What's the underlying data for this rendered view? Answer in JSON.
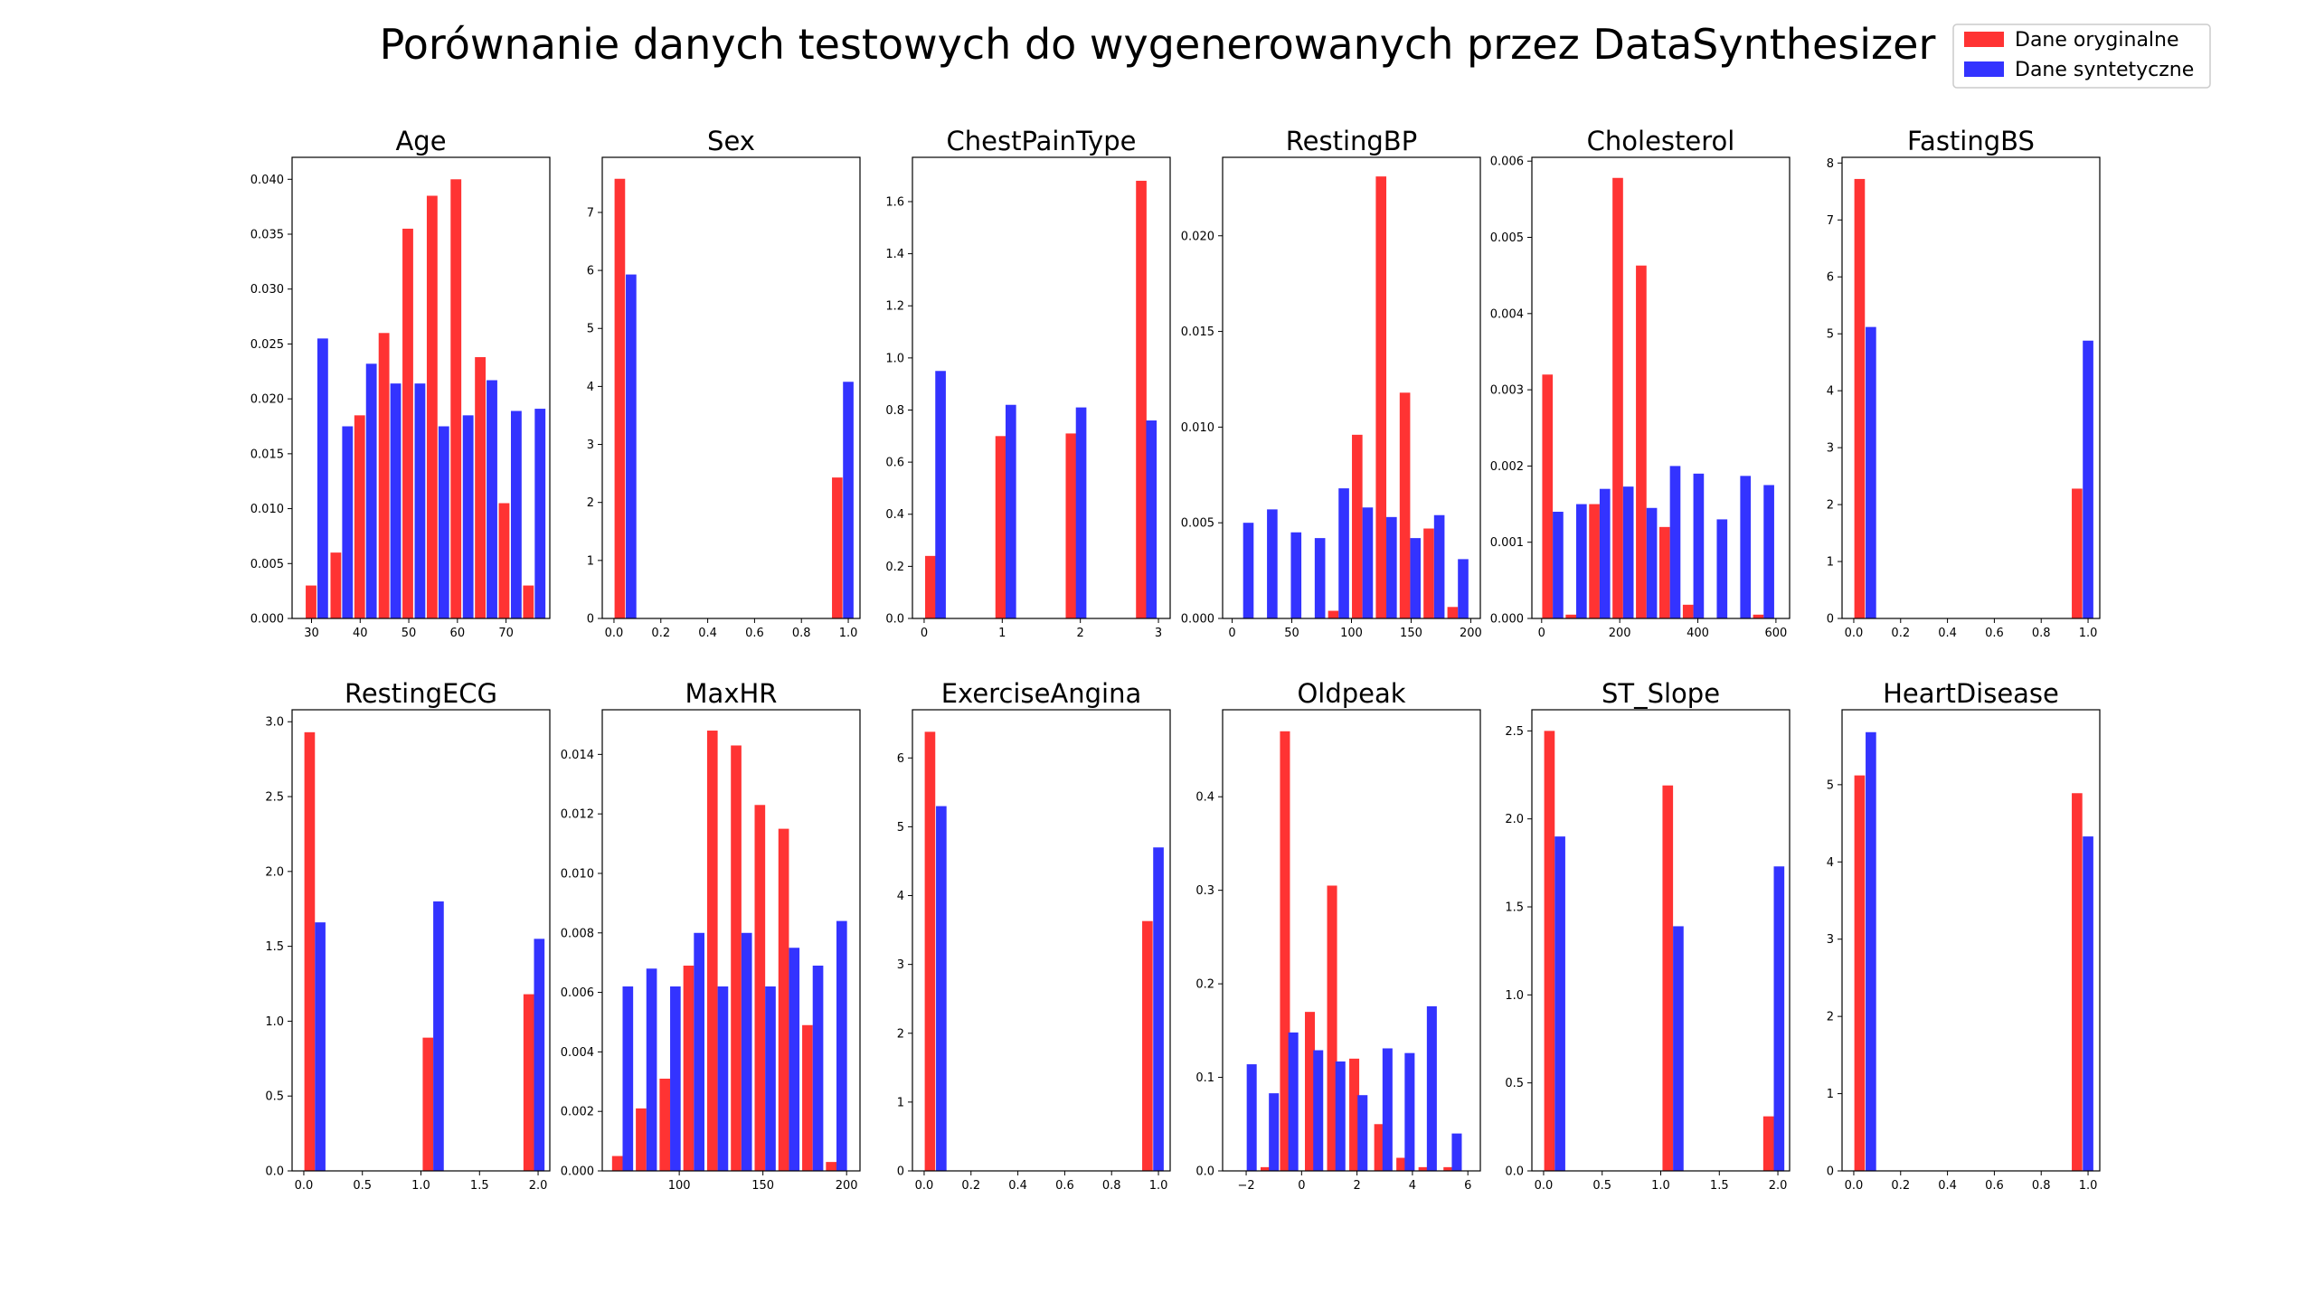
{
  "title": "Porównanie danych testowych do wygenerowanych przez DataSynthesizer",
  "legend": {
    "placement": "top-right",
    "items": [
      {
        "label": "Dane oryginalne",
        "color": "#ff3333"
      },
      {
        "label": "Dane syntetyczne",
        "color": "#3333ff"
      }
    ]
  },
  "chart_data": [
    {
      "type": "bar",
      "title": "Age",
      "xlim": [
        26,
        79
      ],
      "ylim": [
        0,
        0.042
      ],
      "xticks": [
        30,
        40,
        50,
        60,
        70
      ],
      "xtick_labels": [
        "30",
        "40",
        "50",
        "60",
        "70"
      ],
      "yticks": [
        0,
        0.005,
        0.01,
        0.015,
        0.02,
        0.025,
        0.03,
        0.035,
        0.04
      ],
      "ytick_labels": [
        "0.000",
        "0.005",
        "0.010",
        "0.015",
        "0.020",
        "0.025",
        "0.030",
        "0.035",
        "0.040"
      ],
      "bar_width": 2.2,
      "series": [
        {
          "name": "Dane oryginalne",
          "x": [
            29.9,
            35.0,
            39.9,
            44.9,
            49.8,
            54.8,
            59.7,
            64.7,
            69.6,
            74.6
          ],
          "values": [
            0.003,
            0.006,
            0.0185,
            0.026,
            0.0355,
            0.0385,
            0.04,
            0.0238,
            0.0105,
            0.003
          ]
        },
        {
          "name": "Dane syntetyczne",
          "x": [
            32.3,
            37.4,
            42.3,
            47.3,
            52.3,
            57.2,
            62.2,
            67.1,
            72.1,
            77.0
          ],
          "values": [
            0.0255,
            0.0175,
            0.0232,
            0.0214,
            0.0214,
            0.0175,
            0.0185,
            0.0217,
            0.0189,
            0.0191
          ]
        }
      ]
    },
    {
      "type": "bar",
      "title": "Sex",
      "xlim": [
        -0.05,
        1.05
      ],
      "ylim": [
        0,
        7.95
      ],
      "xticks": [
        0,
        0.2,
        0.4,
        0.6,
        0.8,
        1.0
      ],
      "xtick_labels": [
        "0.0",
        "0.2",
        "0.4",
        "0.6",
        "0.8",
        "1.0"
      ],
      "yticks": [
        0,
        1,
        2,
        3,
        4,
        5,
        6,
        7
      ],
      "ytick_labels": [
        "0",
        "1",
        "2",
        "3",
        "4",
        "5",
        "6",
        "7"
      ],
      "bar_width": 0.045,
      "series": [
        {
          "name": "Dane oryginalne",
          "x": [
            0.025,
            0.953
          ],
          "values": [
            7.58,
            2.43
          ]
        },
        {
          "name": "Dane syntetyczne",
          "x": [
            0.073,
            1.0
          ],
          "values": [
            5.93,
            4.08
          ]
        }
      ]
    },
    {
      "type": "bar",
      "title": "ChestPainType",
      "xlim": [
        -0.15,
        3.15
      ],
      "ylim": [
        0,
        1.77
      ],
      "xticks": [
        0,
        1,
        2,
        3
      ],
      "xtick_labels": [
        "0",
        "1",
        "2",
        "3"
      ],
      "yticks": [
        0,
        0.2,
        0.4,
        0.6,
        0.8,
        1.0,
        1.2,
        1.4,
        1.6
      ],
      "ytick_labels": [
        "0.0",
        "0.2",
        "0.4",
        "0.6",
        "0.8",
        "1.0",
        "1.2",
        "1.4",
        "1.6"
      ],
      "bar_width": 0.135,
      "series": [
        {
          "name": "Dane oryginalne",
          "x": [
            0.08,
            0.98,
            1.88,
            2.78
          ],
          "values": [
            0.24,
            0.7,
            0.71,
            1.68
          ]
        },
        {
          "name": "Dane syntetyczne",
          "x": [
            0.21,
            1.11,
            2.01,
            2.91
          ],
          "values": [
            0.95,
            0.82,
            0.81,
            0.76
          ]
        }
      ]
    },
    {
      "type": "bar",
      "title": "RestingBP",
      "xlim": [
        -8,
        208
      ],
      "ylim": [
        0,
        0.0241
      ],
      "xticks": [
        0,
        50,
        100,
        150,
        200
      ],
      "xtick_labels": [
        "0",
        "50",
        "100",
        "150",
        "200"
      ],
      "yticks": [
        0,
        0.005,
        0.01,
        0.015,
        0.02
      ],
      "ytick_labels": [
        "0.000",
        "0.005",
        "0.010",
        "0.015",
        "0.020"
      ],
      "bar_width": 8.8,
      "series": [
        {
          "name": "Dane oryginalne",
          "x": [
            4.8,
            24.8,
            44.8,
            64.8,
            84.8,
            104.8,
            124.8,
            144.8,
            164.8,
            184.8
          ],
          "values": [
            0,
            0,
            0,
            0,
            0.0004,
            0.0096,
            0.0231,
            0.0118,
            0.0047,
            0.0006
          ]
        },
        {
          "name": "Dane syntetyczne",
          "x": [
            13.6,
            33.6,
            53.6,
            73.6,
            93.6,
            113.6,
            133.6,
            153.6,
            173.6,
            193.6
          ],
          "values": [
            0.005,
            0.0057,
            0.0045,
            0.0042,
            0.0068,
            0.0058,
            0.0053,
            0.0042,
            0.0054,
            0.0031
          ]
        }
      ]
    },
    {
      "type": "bar",
      "title": "Cholesterol",
      "xlim": [
        -25,
        635
      ],
      "ylim": [
        0,
        0.00605
      ],
      "xticks": [
        0,
        200,
        400,
        600
      ],
      "xtick_labels": [
        "0",
        "200",
        "400",
        "600"
      ],
      "yticks": [
        0,
        0.001,
        0.002,
        0.003,
        0.004,
        0.005,
        0.006
      ],
      "ytick_labels": [
        "0.000",
        "0.001",
        "0.002",
        "0.003",
        "0.004",
        "0.005",
        "0.006"
      ],
      "bar_width": 27,
      "series": [
        {
          "name": "Dane oryginalne",
          "x": [
            15,
            75,
            135,
            195,
            255,
            315,
            375,
            435,
            495,
            555
          ],
          "values": [
            0.0032,
            5e-05,
            0.0015,
            0.00578,
            0.00463,
            0.0012,
            0.00018,
            0,
            0,
            5e-05
          ]
        },
        {
          "name": "Dane syntetyczne",
          "x": [
            42,
            102,
            162,
            222,
            282,
            342,
            402,
            462,
            522,
            582
          ],
          "values": [
            0.0014,
            0.0015,
            0.0017,
            0.00173,
            0.00145,
            0.002,
            0.0019,
            0.0013,
            0.00187,
            0.00175
          ]
        }
      ]
    },
    {
      "type": "bar",
      "title": "FastingBS",
      "xlim": [
        -0.05,
        1.05
      ],
      "ylim": [
        0,
        8.1
      ],
      "xticks": [
        0,
        0.2,
        0.4,
        0.6,
        0.8,
        1.0
      ],
      "xtick_labels": [
        "0.0",
        "0.2",
        "0.4",
        "0.6",
        "0.8",
        "1.0"
      ],
      "yticks": [
        0,
        1,
        2,
        3,
        4,
        5,
        6,
        7,
        8
      ],
      "ytick_labels": [
        "0",
        "1",
        "2",
        "3",
        "4",
        "5",
        "6",
        "7",
        "8"
      ],
      "bar_width": 0.045,
      "series": [
        {
          "name": "Dane oryginalne",
          "x": [
            0.025,
            0.953
          ],
          "values": [
            7.72,
            2.28
          ]
        },
        {
          "name": "Dane syntetyczne",
          "x": [
            0.073,
            1.0
          ],
          "values": [
            5.12,
            4.88
          ]
        }
      ]
    },
    {
      "type": "bar",
      "title": "RestingECG",
      "xlim": [
        -0.1,
        2.1
      ],
      "ylim": [
        0,
        3.08
      ],
      "xticks": [
        0,
        0.5,
        1.0,
        1.5,
        2.0
      ],
      "xtick_labels": [
        "0.0",
        "0.5",
        "1.0",
        "1.5",
        "2.0"
      ],
      "yticks": [
        0,
        0.5,
        1.0,
        1.5,
        2.0,
        2.5,
        3.0
      ],
      "ytick_labels": [
        "0.0",
        "0.5",
        "1.0",
        "1.5",
        "2.0",
        "2.5",
        "3.0"
      ],
      "bar_width": 0.09,
      "series": [
        {
          "name": "Dane oryginalne",
          "x": [
            0.05,
            1.06,
            1.92
          ],
          "values": [
            2.93,
            0.89,
            1.18
          ]
        },
        {
          "name": "Dane syntetyczne",
          "x": [
            0.14,
            1.15,
            2.01
          ],
          "values": [
            1.66,
            1.8,
            1.55
          ]
        }
      ]
    },
    {
      "type": "bar",
      "title": "MaxHR",
      "xlim": [
        54,
        208
      ],
      "ylim": [
        0,
        0.0155
      ],
      "xticks": [
        100,
        150,
        200
      ],
      "xtick_labels": [
        "100",
        "150",
        "200"
      ],
      "yticks": [
        0,
        0.002,
        0.004,
        0.006,
        0.008,
        0.01,
        0.012,
        0.014
      ],
      "ytick_labels": [
        "0.000",
        "0.002",
        "0.004",
        "0.006",
        "0.008",
        "0.010",
        "0.012",
        "0.014"
      ],
      "bar_width": 6.3,
      "series": [
        {
          "name": "Dane oryginalne",
          "x": [
            63,
            77.2,
            91.4,
            105.6,
            119.8,
            134,
            148.2,
            162.4,
            176.6,
            190.8
          ],
          "values": [
            0.0005,
            0.0021,
            0.0031,
            0.0069,
            0.0148,
            0.0143,
            0.0123,
            0.0115,
            0.0049,
            0.0003
          ]
        },
        {
          "name": "Dane syntetyczne",
          "x": [
            69.3,
            83.5,
            97.7,
            111.9,
            126.1,
            140.3,
            154.5,
            168.7,
            182.9,
            197.1
          ],
          "values": [
            0.0062,
            0.0068,
            0.0062,
            0.008,
            0.0062,
            0.008,
            0.0062,
            0.0075,
            0.0069,
            0.0084
          ]
        }
      ]
    },
    {
      "type": "bar",
      "title": "ExerciseAngina",
      "xlim": [
        -0.05,
        1.05
      ],
      "ylim": [
        0,
        6.7
      ],
      "xticks": [
        0,
        0.2,
        0.4,
        0.6,
        0.8,
        1.0
      ],
      "xtick_labels": [
        "0.0",
        "0.2",
        "0.4",
        "0.6",
        "0.8",
        "1.0"
      ],
      "yticks": [
        0,
        1,
        2,
        3,
        4,
        5,
        6
      ],
      "ytick_labels": [
        "0",
        "1",
        "2",
        "3",
        "4",
        "5",
        "6"
      ],
      "bar_width": 0.045,
      "series": [
        {
          "name": "Dane oryginalne",
          "x": [
            0.025,
            0.953
          ],
          "values": [
            6.38,
            3.63
          ]
        },
        {
          "name": "Dane syntetyczne",
          "x": [
            0.073,
            1.0
          ],
          "values": [
            5.3,
            4.7
          ]
        }
      ]
    },
    {
      "type": "bar",
      "title": "Oldpeak",
      "xlim": [
        -2.85,
        6.45
      ],
      "ylim": [
        0,
        0.493
      ],
      "xticks": [
        -2,
        0,
        2,
        4,
        6
      ],
      "xtick_labels": [
        "−2",
        "0",
        "2",
        "4",
        "6"
      ],
      "yticks": [
        0,
        0.1,
        0.2,
        0.3,
        0.4
      ],
      "ytick_labels": [
        "0.0",
        "0.1",
        "0.2",
        "0.3",
        "0.4"
      ],
      "bar_width": 0.36,
      "series": [
        {
          "name": "Dane oryginalne",
          "x": [
            -2.1,
            -1.3,
            -0.6,
            0.3,
            1.1,
            1.9,
            2.8,
            3.6,
            4.4,
            5.3
          ],
          "values": [
            0,
            0.004,
            0.47,
            0.17,
            0.305,
            0.12,
            0.05,
            0.014,
            0.004,
            0.004
          ]
        },
        {
          "name": "Dane syntetyczne",
          "x": [
            -1.8,
            -1.0,
            -0.3,
            0.6,
            1.4,
            2.2,
            3.1,
            3.9,
            4.7,
            5.6
          ],
          "values": [
            0.114,
            0.083,
            0.148,
            0.129,
            0.117,
            0.081,
            0.131,
            0.126,
            0.176,
            0.04
          ]
        }
      ]
    },
    {
      "type": "bar",
      "title": "ST_Slope",
      "xlim": [
        -0.1,
        2.1
      ],
      "ylim": [
        0,
        2.62
      ],
      "xticks": [
        0,
        0.5,
        1.0,
        1.5,
        2.0
      ],
      "xtick_labels": [
        "0.0",
        "0.5",
        "1.0",
        "1.5",
        "2.0"
      ],
      "yticks": [
        0,
        0.5,
        1.0,
        1.5,
        2.0,
        2.5
      ],
      "ytick_labels": [
        "0.0",
        "0.5",
        "1.0",
        "1.5",
        "2.0",
        "2.5"
      ],
      "bar_width": 0.09,
      "series": [
        {
          "name": "Dane oryginalne",
          "x": [
            0.05,
            1.06,
            1.92
          ],
          "values": [
            2.5,
            2.19,
            0.31
          ]
        },
        {
          "name": "Dane syntetyczne",
          "x": [
            0.14,
            1.15,
            2.01
          ],
          "values": [
            1.9,
            1.39,
            1.73
          ]
        }
      ]
    },
    {
      "type": "bar",
      "title": "HeartDisease",
      "xlim": [
        -0.05,
        1.05
      ],
      "ylim": [
        0,
        5.97
      ],
      "xticks": [
        0,
        0.2,
        0.4,
        0.6,
        0.8,
        1.0
      ],
      "xtick_labels": [
        "0.0",
        "0.2",
        "0.4",
        "0.6",
        "0.8",
        "1.0"
      ],
      "yticks": [
        0,
        1,
        2,
        3,
        4,
        5
      ],
      "ytick_labels": [
        "0",
        "1",
        "2",
        "3",
        "4",
        "5"
      ],
      "bar_width": 0.045,
      "series": [
        {
          "name": "Dane oryginalne",
          "x": [
            0.025,
            0.953
          ],
          "values": [
            5.12,
            4.89
          ]
        },
        {
          "name": "Dane syntetyczne",
          "x": [
            0.073,
            1.0
          ],
          "values": [
            5.68,
            4.33
          ]
        }
      ]
    }
  ]
}
